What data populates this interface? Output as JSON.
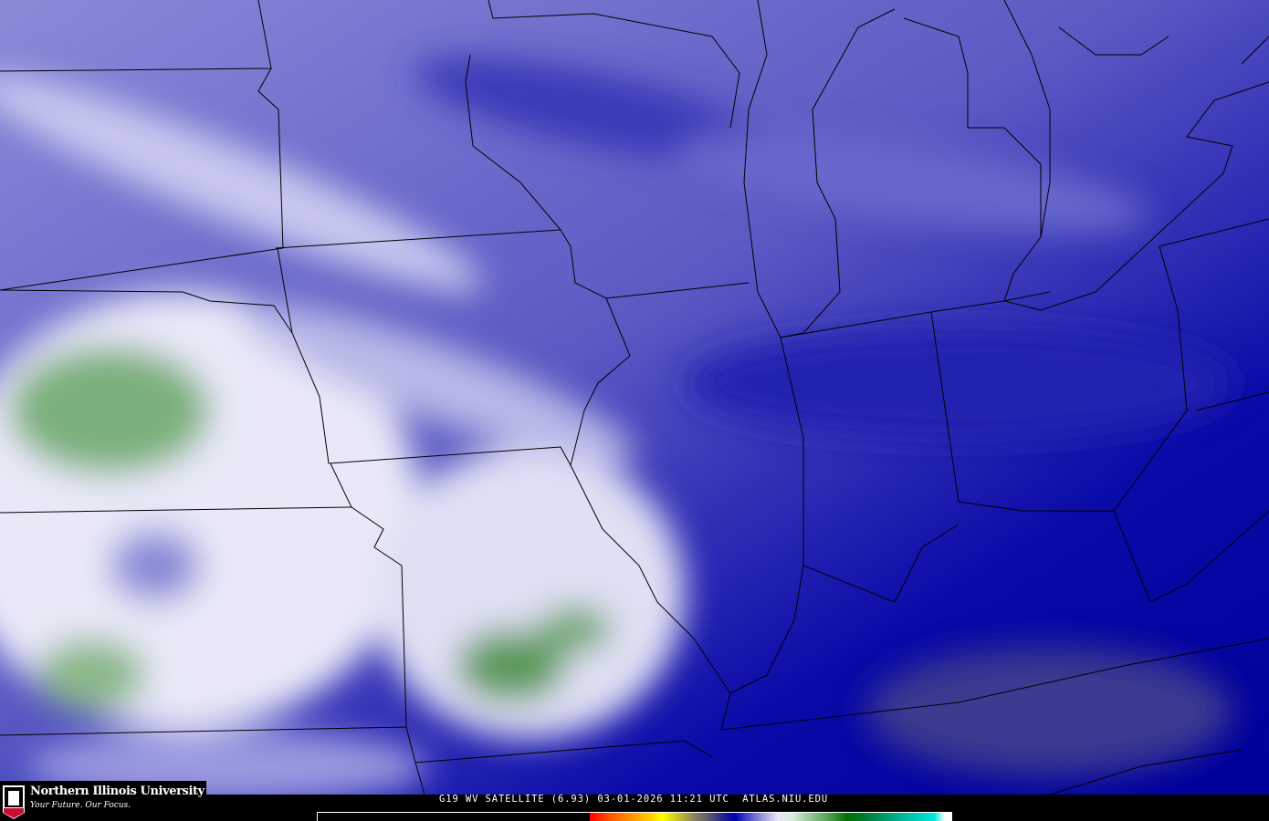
{
  "logo": {
    "name": "Northern Illinois University",
    "tagline": "Your Future. Our Focus.",
    "badge": "NIU"
  },
  "caption": "G19 WV SATELLITE (6.93) 03-01-2026 11:21 UTC  ATLAS.NIU.EDU",
  "colorbar": {
    "colors": [
      "#ff0000",
      "#ff9a00",
      "#ffff00",
      "#8a8060",
      "#0000b0",
      "#a0a0e0",
      "#e8e8f8",
      "#50a050",
      "#007000",
      "#00e8e0"
    ]
  },
  "colors": {
    "dry_dark": "#0000a8",
    "mid": "#5a5ac8",
    "moist": "#c8c8f0",
    "very_moist": "#4a9a4a"
  }
}
